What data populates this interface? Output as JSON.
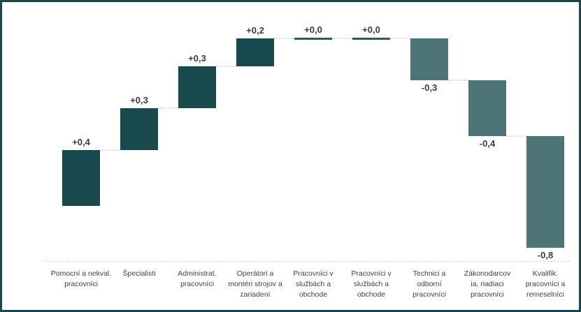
{
  "chart_data": {
    "type": "bar",
    "subtype": "waterfall",
    "title": "",
    "xlabel": "",
    "ylabel": "",
    "grid": false,
    "legend": false,
    "ylim": [
      -0.4,
      1.45
    ],
    "categories": [
      "Pomocní a nekval. pracovníci",
      "Špecialisti",
      "Administrat. pracovníci",
      "Operátori a montéri strojov a zariadení",
      "Pracovníci v službách a obchode",
      "Pracovníci v službách a obchode",
      "Technici a odborní pracovníci",
      "Zákonodarcovia, riadiaci pracovníci",
      "Kvalifik. pracovníci a remeselníci"
    ],
    "category_lines": [
      [
        "Pomocní a nekval.",
        "pracovníci"
      ],
      [
        "Špecialisti"
      ],
      [
        "Administrat.",
        "pracovníci"
      ],
      [
        "Operátori a",
        "montéri strojov a",
        "zariadení"
      ],
      [
        "Pracovníci v",
        "službách a",
        "obchode"
      ],
      [
        "Pracovníci v",
        "službách a",
        "obchode"
      ],
      [
        "Technici a",
        "odborní",
        "pracovníci"
      ],
      [
        "Zákonodarcov",
        "ia, riadiaci",
        "pracovníci"
      ],
      [
        "Kvalifik.",
        "pracovníci a",
        "remeselníci"
      ]
    ],
    "values": [
      0.4,
      0.3,
      0.3,
      0.2,
      0.0,
      0.0,
      -0.3,
      -0.4,
      -0.8
    ],
    "value_labels": [
      "+0,4",
      "+0,3",
      "+0,3",
      "+0,2",
      "+0,0",
      "+0,0",
      "-0,3",
      "-0,4",
      "-0,8"
    ],
    "cumulative": [
      0.4,
      0.7,
      1.0,
      1.2,
      1.2,
      1.2,
      0.9,
      0.5,
      -0.3
    ],
    "colors": {
      "increase": "#17494d",
      "decrease": "#4d7578",
      "zero_bar": "#2a5c60",
      "connector": "#dcdcdc",
      "axis": "#d4d4d4",
      "frame_border": "#17494d",
      "text": "#404040",
      "value_text": "#3a3a3a",
      "background": "#ffffff"
    }
  }
}
